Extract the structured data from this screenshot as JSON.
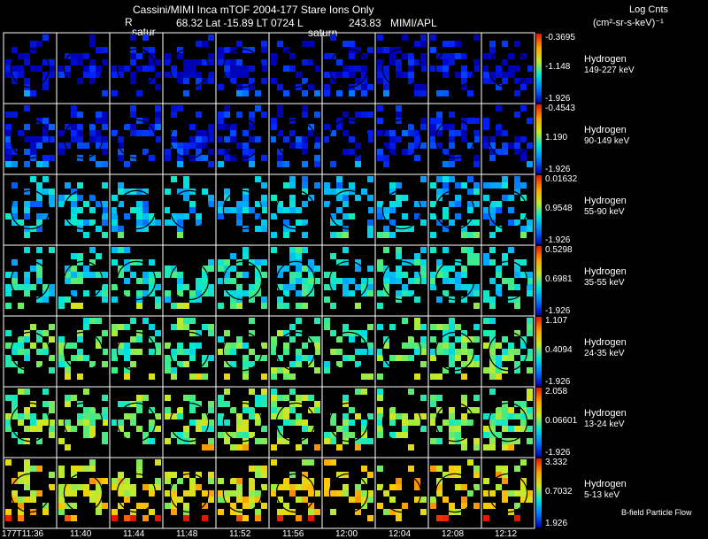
{
  "header": {
    "title": "Cassini/MIMI Inca mTOF  2004-177   Stare   Ions Only",
    "r_label": "R",
    "position_info": "68.32 Lat -15.89 LT 0724 L",
    "l_value": "243.83",
    "source": "MIMI/APL",
    "units_line1": "Log Cnts",
    "units_line2": "(cm²-sr-s-keV)⁻¹",
    "target_label_a": "satur",
    "target_label_b": "saturn"
  },
  "footer": {
    "legend_note": "B-field Particle Flow"
  },
  "colors": {
    "background": "#000000",
    "panel_border": "#ffffff",
    "circle": "#000000"
  },
  "chart_data": {
    "type": "heatmap",
    "title": "Cassini/MIMI Inca mTOF  2004-177   Stare   Ions Only",
    "x": [
      "177T11:36",
      "11:40",
      "11:44",
      "11:48",
      "11:52",
      "11:56",
      "12:00",
      "12:04",
      "12:08",
      "12:12"
    ],
    "xlabel": "",
    "ylabel": "",
    "scale": "log",
    "colormap": "rainbow (blue low → red high)",
    "grid": "10 columns × 7 rows of pixelated sky images",
    "channels": [
      {
        "species": "Hydrogen",
        "energy": "149-227 keV",
        "cbar_max": "-0.3695",
        "cbar_mid": "-1.148",
        "cbar_min": "-1.926",
        "level": 0.05
      },
      {
        "species": "Hydrogen",
        "energy": "90-149 keV",
        "cbar_max": "-0.4543",
        "cbar_mid": "1.190",
        "cbar_min": "-1.926",
        "level": 0.1
      },
      {
        "species": "Hydrogen",
        "energy": "55-90 keV",
        "cbar_max": "0.01632",
        "cbar_mid": "0.9548",
        "cbar_min": "-1.926",
        "level": 0.35
      },
      {
        "species": "Hydrogen",
        "energy": "35-55 keV",
        "cbar_max": "0.5298",
        "cbar_mid": "0.6981",
        "cbar_min": "-1.926",
        "level": 0.45
      },
      {
        "species": "Hydrogen",
        "energy": "24-35 keV",
        "cbar_max": "1.107",
        "cbar_mid": "0.4094",
        "cbar_min": "-1.926",
        "level": 0.55
      },
      {
        "species": "Hydrogen",
        "energy": "13-24 keV",
        "cbar_max": "2.058",
        "cbar_mid": "0.06601",
        "cbar_min": "-1.926",
        "level": 0.6
      },
      {
        "species": "Hydrogen",
        "energy": "5-13 keV",
        "cbar_max": "3.332",
        "cbar_mid": "0.7032",
        "cbar_min": "1.926",
        "level": 0.75
      }
    ]
  }
}
